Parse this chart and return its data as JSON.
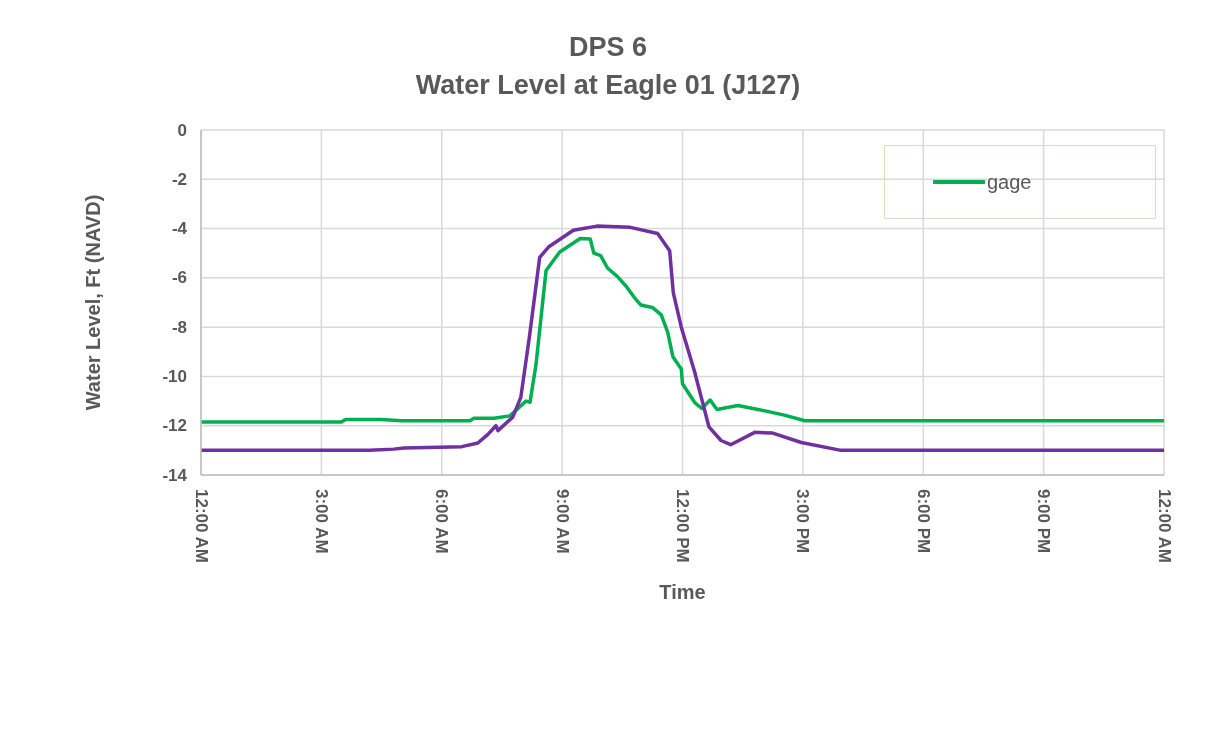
{
  "chart_data": {
    "type": "line",
    "title": "DPS 6",
    "subtitle": "Water Level at Eagle 01 (J127)",
    "xlabel": "Time",
    "ylabel": "Water Level, Ft (NAVD)",
    "xlim": [
      0,
      24
    ],
    "xticks": [
      {
        "value": 0,
        "label": "12:00 AM"
      },
      {
        "value": 3,
        "label": "3:00 AM"
      },
      {
        "value": 6,
        "label": "6:00 AM"
      },
      {
        "value": 9,
        "label": "9:00 AM"
      },
      {
        "value": 12,
        "label": "12:00 PM"
      },
      {
        "value": 15,
        "label": "3:00 PM"
      },
      {
        "value": 18,
        "label": "6:00 PM"
      },
      {
        "value": 21,
        "label": "9:00 PM"
      },
      {
        "value": 24,
        "label": "12:00 AM"
      }
    ],
    "ylim": [
      -14,
      0
    ],
    "yticks": [
      -14,
      -12,
      -10,
      -8,
      -6,
      -4,
      -2,
      0
    ],
    "grid": true,
    "legend": "top right",
    "marker": "none",
    "line_style": "solid",
    "series": [
      {
        "name": "gage",
        "color": "#00b050",
        "x": [
          0,
          3.5,
          3.6,
          4.5,
          5,
          6,
          6.7,
          6.8,
          7.3,
          7.7,
          8.1,
          8.2,
          8.35,
          8.6,
          8.94,
          9.45,
          9.7,
          9.79,
          9.96,
          10.13,
          10.38,
          10.6,
          10.8,
          10.96,
          11.25,
          11.47,
          11.63,
          11.76,
          11.97,
          12.0,
          12.3,
          12.48,
          12.69,
          12.86,
          13.38,
          13.85,
          14.54,
          15.05,
          18,
          21,
          24
        ],
        "values": [
          -11.85,
          -11.85,
          -11.75,
          -11.75,
          -11.8,
          -11.8,
          -11.8,
          -11.7,
          -11.7,
          -11.6,
          -11.0,
          -11.05,
          -9.5,
          -5.7,
          -4.95,
          -4.4,
          -4.42,
          -5.0,
          -5.1,
          -5.6,
          -5.95,
          -6.35,
          -6.8,
          -7.1,
          -7.2,
          -7.5,
          -8.2,
          -9.2,
          -9.7,
          -10.3,
          -11.05,
          -11.3,
          -10.96,
          -11.34,
          -11.18,
          -11.33,
          -11.57,
          -11.8,
          -11.8,
          -11.8,
          -11.8
        ]
      },
      {
        "color": "#7030a0",
        "x": [
          0,
          4.2,
          4.8,
          5.06,
          6.5,
          6.9,
          7.15,
          7.35,
          7.4,
          7.77,
          7.97,
          8.18,
          8.44,
          8.66,
          9.28,
          9.87,
          10.7,
          11.38,
          11.68,
          11.77,
          11.97,
          12.3,
          12.66,
          12.96,
          13.2,
          13.8,
          14.25,
          14.96,
          15.95,
          18,
          21,
          24
        ],
        "values": [
          -13.0,
          -13.0,
          -12.95,
          -12.9,
          -12.85,
          -12.7,
          -12.35,
          -12.0,
          -12.2,
          -11.65,
          -10.85,
          -8.45,
          -5.17,
          -4.75,
          -4.07,
          -3.9,
          -3.95,
          -4.2,
          -4.9,
          -6.6,
          -8.0,
          -9.8,
          -12.05,
          -12.6,
          -12.77,
          -12.27,
          -12.3,
          -12.68,
          -13.0,
          -13.0,
          -13.0,
          -13.0
        ]
      }
    ]
  }
}
